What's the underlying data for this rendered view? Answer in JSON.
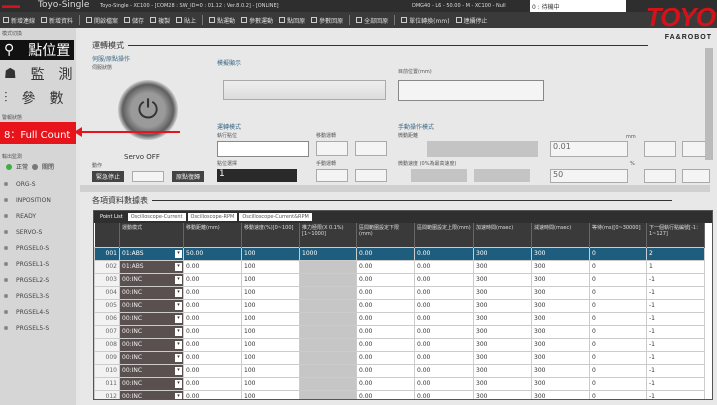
{
  "window": {
    "app_name": "Toyo-Single",
    "title": "Toyo-Single - XC100 - [COM28 : SW_ID=0 : 01.12 : Ver.8.0.2] - [ONLINE]",
    "model_info": "DMG40 - L6 - 50.00 - M - XC100 - Null",
    "search_value": "0 : 待機中"
  },
  "logo": {
    "text": "TOYO",
    "sub": "FA&ROBOT"
  },
  "toolbar": [
    "新增連線",
    "新增資料",
    "開啟檔案",
    "儲存",
    "複製",
    "貼上",
    "點運動",
    "參數運動",
    "點回原",
    "參數回原",
    "全部回原",
    "單位轉換(mm)",
    "連續停止"
  ],
  "sidebar": {
    "section_label": "模式切換",
    "nav": [
      {
        "icon": "location-pin-icon",
        "label": "點位置"
      },
      {
        "icon": "monitor-icon",
        "label": "監　測"
      },
      {
        "icon": "sliders-icon",
        "label": "參　數"
      }
    ],
    "alarm_label": "警報狀態",
    "alarm_text": "8：Full Count",
    "io_label": "輸出監測",
    "legend_normal": "正常",
    "legend_off": "關閉",
    "io": [
      "ORG-S",
      "INPOSITION",
      "READY",
      "SERVO-S",
      "PRGSEL0-S",
      "PRGSEL1-S",
      "PRGSEL2-S",
      "PRGSEL3-S",
      "PRGSEL4-S",
      "PRGSEL5-S"
    ],
    "colors": {
      "alarm": "#e8141c",
      "normal": "#3cb043"
    }
  },
  "operation": {
    "section_title": "運轉模式",
    "servo_group": "伺服/原點操作",
    "servo_state_label": "伺服狀態",
    "servo_label": "Servo OFF",
    "action_label": "動作",
    "stop_btn": "緊急停止",
    "home_btn": "原點復歸",
    "sim_title": "模擬顯示",
    "current_pos_label": "目前位置(mm)",
    "current_pos_value": "",
    "run_mode_title": "運轉模式",
    "exec_point_label": "執行點位",
    "move_label": "移動運轉",
    "point_select_label": "點位選擇",
    "point_select_value": "1",
    "manual_move_label": "手動運轉",
    "manual_title": "手動操作模式",
    "distance_label": "微動距離",
    "distance_value": "0.01",
    "distance_unit": "mm",
    "speed_label": "微動速度 (0%為最高速度)",
    "speed_value": "50",
    "speed_unit": "%"
  },
  "table": {
    "section_title": "各項資料數據表",
    "tabs": [
      "Point List",
      "Oscilloscope-Current",
      "Oscilloscope-RPM",
      "Oscilloscope-Current&RPM"
    ],
    "headers": [
      "",
      "運動模式",
      "移動距離(mm)",
      "移動速度(%)[0~100]",
      "推力極限(X 0.1%)[1~1000]",
      "區間範圍設定下限(mm)",
      "區間範圍設定上限(mm)",
      "加速時間(msec)",
      "減速時間(msec)",
      "等待(ms)[0~30000]",
      "下一個執行點編號[-1：1~127]"
    ],
    "rows": [
      [
        "001",
        "01:ABS",
        "50.00",
        "100",
        "1000",
        "0.00",
        "0.00",
        "300",
        "300",
        "0",
        "2"
      ],
      [
        "002",
        "01:ABS",
        "0.00",
        "100",
        "",
        "0.00",
        "0.00",
        "300",
        "300",
        "0",
        "1"
      ],
      [
        "003",
        "00:INC",
        "0.00",
        "100",
        "",
        "0.00",
        "0.00",
        "300",
        "300",
        "0",
        "-1"
      ],
      [
        "004",
        "00:INC",
        "0.00",
        "100",
        "",
        "0.00",
        "0.00",
        "300",
        "300",
        "0",
        "-1"
      ],
      [
        "005",
        "00:INC",
        "0.00",
        "100",
        "",
        "0.00",
        "0.00",
        "300",
        "300",
        "0",
        "-1"
      ],
      [
        "006",
        "00:INC",
        "0.00",
        "100",
        "",
        "0.00",
        "0.00",
        "300",
        "300",
        "0",
        "-1"
      ],
      [
        "007",
        "00:INC",
        "0.00",
        "100",
        "",
        "0.00",
        "0.00",
        "300",
        "300",
        "0",
        "-1"
      ],
      [
        "008",
        "00:INC",
        "0.00",
        "100",
        "",
        "0.00",
        "0.00",
        "300",
        "300",
        "0",
        "-1"
      ],
      [
        "009",
        "00:INC",
        "0.00",
        "100",
        "",
        "0.00",
        "0.00",
        "300",
        "300",
        "0",
        "-1"
      ],
      [
        "010",
        "00:INC",
        "0.00",
        "100",
        "",
        "0.00",
        "0.00",
        "300",
        "300",
        "0",
        "-1"
      ],
      [
        "011",
        "00:INC",
        "0.00",
        "100",
        "",
        "0.00",
        "0.00",
        "300",
        "300",
        "0",
        "-1"
      ],
      [
        "012",
        "00:INC",
        "0.00",
        "100",
        "",
        "0.00",
        "0.00",
        "300",
        "300",
        "0",
        "-1"
      ]
    ],
    "selected_row": "001"
  }
}
